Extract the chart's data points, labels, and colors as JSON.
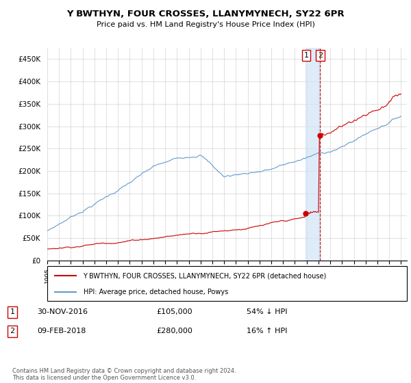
{
  "title": "Y BWTHYN, FOUR CROSSES, LLANYMYNECH, SY22 6PR",
  "subtitle": "Price paid vs. HM Land Registry's House Price Index (HPI)",
  "ylim": [
    0,
    470000
  ],
  "yticks": [
    0,
    50000,
    100000,
    150000,
    200000,
    250000,
    300000,
    350000,
    400000,
    450000
  ],
  "ytick_labels": [
    "£0",
    "£50K",
    "£100K",
    "£150K",
    "£200K",
    "£250K",
    "£300K",
    "£350K",
    "£400K",
    "£450K"
  ],
  "sale1_date_num": 2016.917,
  "sale1_price": 105000,
  "sale1_label": "30-NOV-2016",
  "sale1_pct": "54% ↓ HPI",
  "sale2_date_num": 2018.11,
  "sale2_price": 280000,
  "sale2_label": "09-FEB-2018",
  "sale2_pct": "16% ↑ HPI",
  "hpi_color": "#6699cc",
  "price_color": "#cc0000",
  "marker_color": "#cc0000",
  "vline_color": "#cc0000",
  "shade_color": "#d0e4f7",
  "legend_label_red": "Y BWTHYN, FOUR CROSSES, LLANYMYNECH, SY22 6PR (detached house)",
  "legend_label_blue": "HPI: Average price, detached house, Powys",
  "footnote": "Contains HM Land Registry data © Crown copyright and database right 2024.\nThis data is licensed under the Open Government Licence v3.0.",
  "table_row1": [
    "1",
    "30-NOV-2016",
    "£105,000",
    "54% ↓ HPI"
  ],
  "table_row2": [
    "2",
    "09-FEB-2018",
    "£280,000",
    "16% ↑ HPI"
  ]
}
